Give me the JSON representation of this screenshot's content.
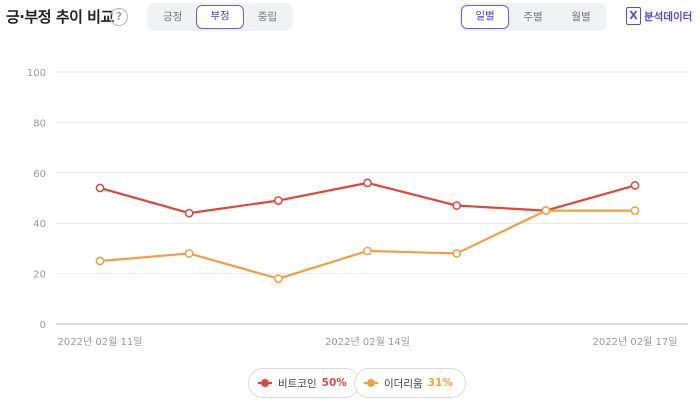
{
  "header": {
    "title": "긍·부정 추이 비교",
    "help_glyph": "?",
    "sentiment_tabs": [
      "긍정",
      "부정",
      "중립"
    ],
    "sentiment_active": 1,
    "period_tabs": [
      "일별",
      "주별",
      "월별"
    ],
    "period_active": 0,
    "export_label": "분석데이터",
    "export_glyph": "X"
  },
  "chart_data": {
    "type": "line",
    "x": [
      "2022-02-11",
      "2022-02-12",
      "2022-02-13",
      "2022-02-14",
      "2022-02-15",
      "2022-02-16",
      "2022-02-17"
    ],
    "x_tick_labels": [
      {
        "index": 0,
        "label": "2022년 02월 11일"
      },
      {
        "index": 3,
        "label": "2022년 02월 14일"
      },
      {
        "index": 6,
        "label": "2022년 02월 17일"
      }
    ],
    "ylim": [
      0,
      100
    ],
    "y_ticks": [
      0,
      20,
      40,
      60,
      80,
      100
    ],
    "grid": true,
    "series": [
      {
        "name": "비트코인",
        "color": "#e0463b",
        "values": [
          54,
          44,
          49,
          56,
          47,
          45,
          55
        ]
      },
      {
        "name": "이더리움",
        "color": "#f0a040",
        "values": [
          25,
          28,
          18,
          29,
          28,
          45,
          45
        ]
      }
    ],
    "legend": {
      "placement": "bottom-center",
      "entries": [
        {
          "name": "비트코인",
          "percent": "50%",
          "color": "#e0463b"
        },
        {
          "name": "이더리움",
          "percent": "31%",
          "color": "#f0a040"
        }
      ]
    }
  }
}
